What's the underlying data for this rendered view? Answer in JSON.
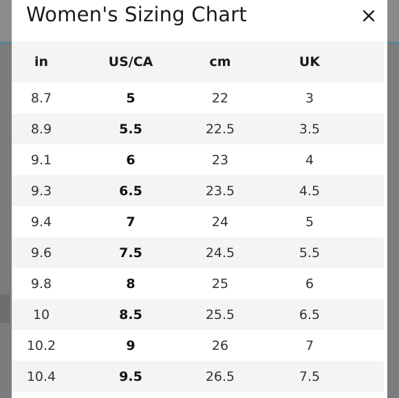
{
  "modal": {
    "title": "Women's Sizing Chart",
    "close_label": "×"
  },
  "table": {
    "headers": [
      "in",
      "US/CA",
      "cm",
      "UK"
    ],
    "rows": [
      [
        "8.7",
        "5",
        "22",
        "3"
      ],
      [
        "8.9",
        "5.5",
        "22.5",
        "3.5"
      ],
      [
        "9.1",
        "6",
        "23",
        "4"
      ],
      [
        "9.3",
        "6.5",
        "23.5",
        "4.5"
      ],
      [
        "9.4",
        "7",
        "24",
        "5"
      ],
      [
        "9.6",
        "7.5",
        "24.5",
        "5.5"
      ],
      [
        "9.8",
        "8",
        "25",
        "6"
      ],
      [
        "10",
        "8.5",
        "25.5",
        "6.5"
      ],
      [
        "10.2",
        "9",
        "26",
        "7"
      ],
      [
        "10.4",
        "9.5",
        "26.5",
        "7.5"
      ]
    ]
  },
  "colors": {
    "backdrop": "#7b7c7d",
    "modal_bg": "#ffffff",
    "stripe_bg": "#f4f4f4",
    "text": "#333333"
  }
}
